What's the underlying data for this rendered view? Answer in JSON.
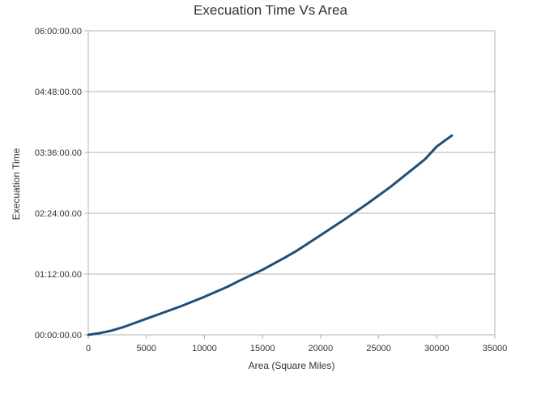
{
  "chart_data": {
    "type": "line",
    "title": "Execuation Time Vs Area",
    "xlabel": "Area (Square Miles)",
    "ylabel": "Execuation Time",
    "xlim": [
      0,
      35000
    ],
    "ylim": [
      0,
      360
    ],
    "y_unit": "minutes",
    "x_ticks": [
      0,
      5000,
      10000,
      15000,
      20000,
      25000,
      30000,
      35000
    ],
    "x_tick_labels": [
      "0",
      "5000",
      "10000",
      "15000",
      "20000",
      "25000",
      "30000",
      "35000"
    ],
    "y_ticks": [
      0,
      72,
      144,
      216,
      288,
      360
    ],
    "y_tick_labels": [
      "00:00:00.00",
      "01:12:00.00",
      "02:24:00.00",
      "03:36:00.00",
      "04:48:00.00",
      "06:00:00.00"
    ],
    "grid": "horizontal",
    "legend": "none",
    "series": [
      {
        "color": "#1f4e79",
        "x": [
          0,
          1000,
          2000,
          3000,
          4000,
          5000,
          6000,
          8000,
          10000,
          12000,
          13000,
          15000,
          17000,
          18000,
          19000,
          20000,
          22000,
          24000,
          26000,
          28000,
          29000,
          30000,
          31300
        ],
        "y": [
          0,
          2,
          5,
          9,
          14,
          19,
          24,
          34,
          45,
          57,
          64,
          77,
          92,
          100,
          109,
          118,
          136,
          155,
          175,
          197,
          208,
          223,
          236
        ]
      }
    ]
  }
}
